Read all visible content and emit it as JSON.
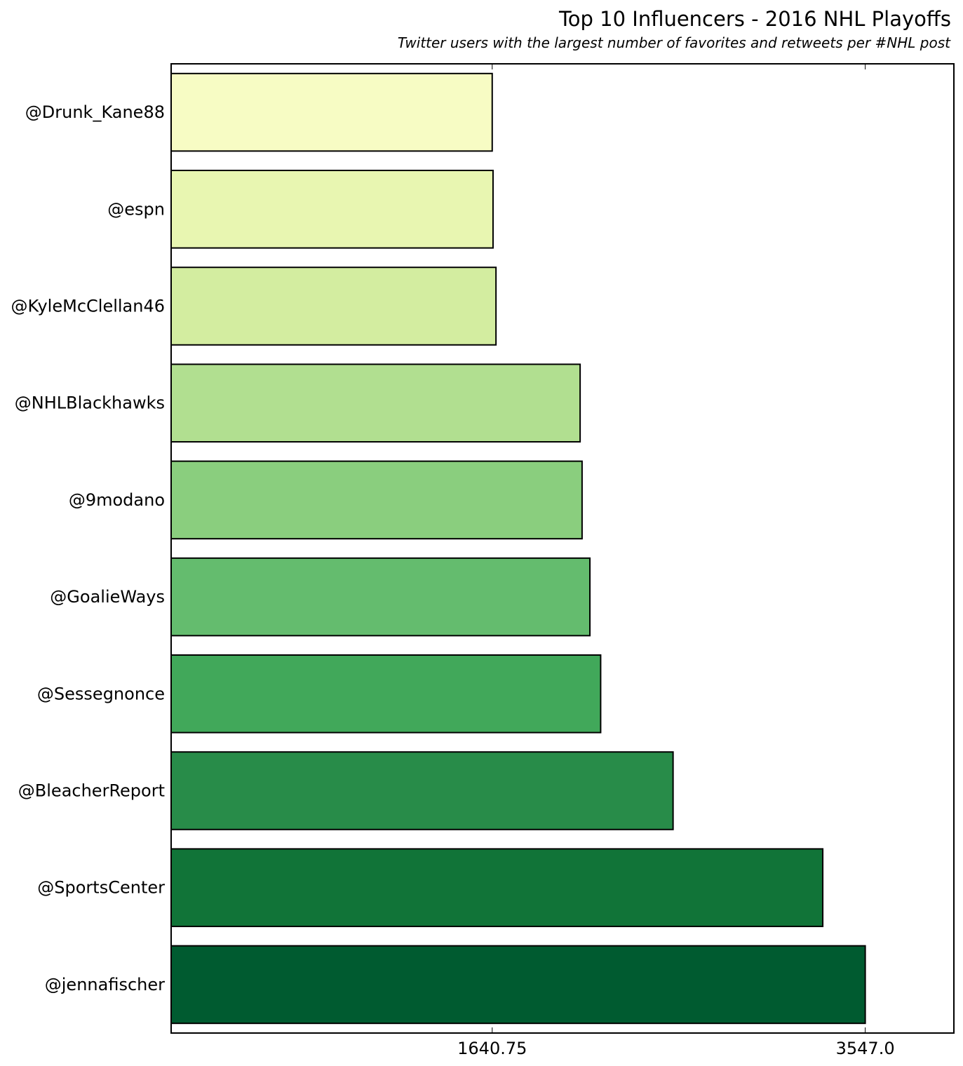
{
  "chart_data": {
    "type": "bar",
    "orientation": "horizontal",
    "title": "Top 10 Influencers - 2016 NHL Playoffs",
    "subtitle": "Twitter users with the largest number of favorites and retweets per #NHL post",
    "xlabel": "",
    "ylabel": "",
    "categories": [
      "@Drunk_Kane88",
      "@espn",
      "@KyleMcClellan46",
      "@NHLBlackhawks",
      "@9modano",
      "@GoalieWays",
      "@Sessegnonce",
      "@BleacherReport",
      "@SportsCenter",
      "@jennafischer"
    ],
    "values": [
      1640.75,
      1645,
      1660,
      2090,
      2100,
      2140,
      2195,
      2565,
      3330,
      3547.0
    ],
    "colors": [
      "#f7fcc4",
      "#e8f6b1",
      "#d3eda0",
      "#b1df90",
      "#8ace7e",
      "#64bc6e",
      "#41a85a",
      "#288c49",
      "#117438",
      "#005b30"
    ],
    "xticks": [
      1640.75,
      3547.0
    ],
    "xtick_labels": [
      "1640.75",
      "3547.0"
    ],
    "xlim": [
      0,
      4000
    ],
    "grid": false,
    "legend": "none"
  }
}
